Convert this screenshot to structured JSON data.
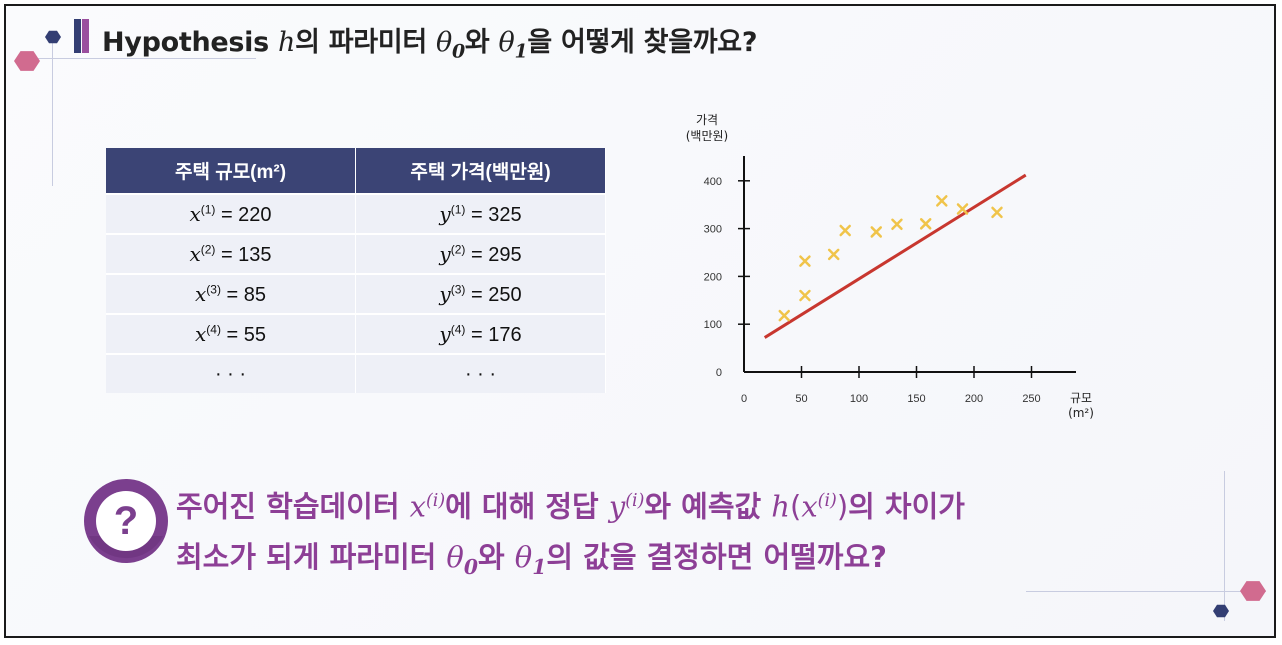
{
  "title": {
    "prefix": "Hypothesis ",
    "h": "h",
    "middle": "의 파라미터 ",
    "theta": "θ",
    "sub0": "0",
    "wa": "와 ",
    "sub1": "1",
    "suffix": "을 어떻게 찾을까요?"
  },
  "table": {
    "headers": [
      "주택 규모(m²)",
      "주택 가격(백만원)"
    ],
    "rows": [
      {
        "xvar": "x",
        "xsup": "(1)",
        "xval": " = 220",
        "yvar": "y",
        "ysup": "(1)",
        "yval": " = 325"
      },
      {
        "xvar": "x",
        "xsup": "(2)",
        "xval": " = 135",
        "yvar": "y",
        "ysup": "(2)",
        "yval": " = 295"
      },
      {
        "xvar": "x",
        "xsup": "(3)",
        "xval": " = 85",
        "yvar": "y",
        "ysup": "(3)",
        "yval": " = 250"
      },
      {
        "xvar": "x",
        "xsup": "(4)",
        "xval": " = 55",
        "yvar": "y",
        "ysup": "(4)",
        "yval": " = 176"
      }
    ],
    "ellipsis": "· · ·"
  },
  "question": {
    "mark": "?",
    "line1_a": "주어진 학습데이터 ",
    "x": "x",
    "isup": "(i)",
    "line1_b": "에 대해 정답 ",
    "y": "y",
    "line1_c": "와 예측값 ",
    "h": "h",
    "open": "(",
    "close": ")",
    "line1_d": "의 차이가",
    "line2_a": "최소가 되게 파라미터 ",
    "theta": "θ",
    "sub0": "0",
    "wa": "와 ",
    "sub1": "1",
    "line2_b": "의 값을 결정하면 어떨까요?"
  },
  "colors": {
    "table_header": "#3b4475",
    "accent_purple": "#8d3f96",
    "fit_line": "#c8372f",
    "marker": "#f0c44a"
  },
  "chart_data": {
    "type": "scatter",
    "ylabel": "가격\n(백만원)",
    "xlabel": "규모\n(m²)",
    "xlim": [
      0,
      250
    ],
    "ylim": [
      0,
      420
    ],
    "xticks": [
      0,
      50,
      100,
      150,
      200,
      250
    ],
    "yticks": [
      0,
      100,
      200,
      300,
      400
    ],
    "grid": false,
    "points": [
      {
        "x": 35,
        "y": 118
      },
      {
        "x": 53,
        "y": 160
      },
      {
        "x": 53,
        "y": 232
      },
      {
        "x": 78,
        "y": 246
      },
      {
        "x": 88,
        "y": 296
      },
      {
        "x": 115,
        "y": 293
      },
      {
        "x": 133,
        "y": 309
      },
      {
        "x": 158,
        "y": 310
      },
      {
        "x": 172,
        "y": 358
      },
      {
        "x": 190,
        "y": 341
      },
      {
        "x": 220,
        "y": 334
      }
    ],
    "fit_line": {
      "x": [
        18,
        245
      ],
      "y": [
        72,
        412
      ]
    }
  }
}
